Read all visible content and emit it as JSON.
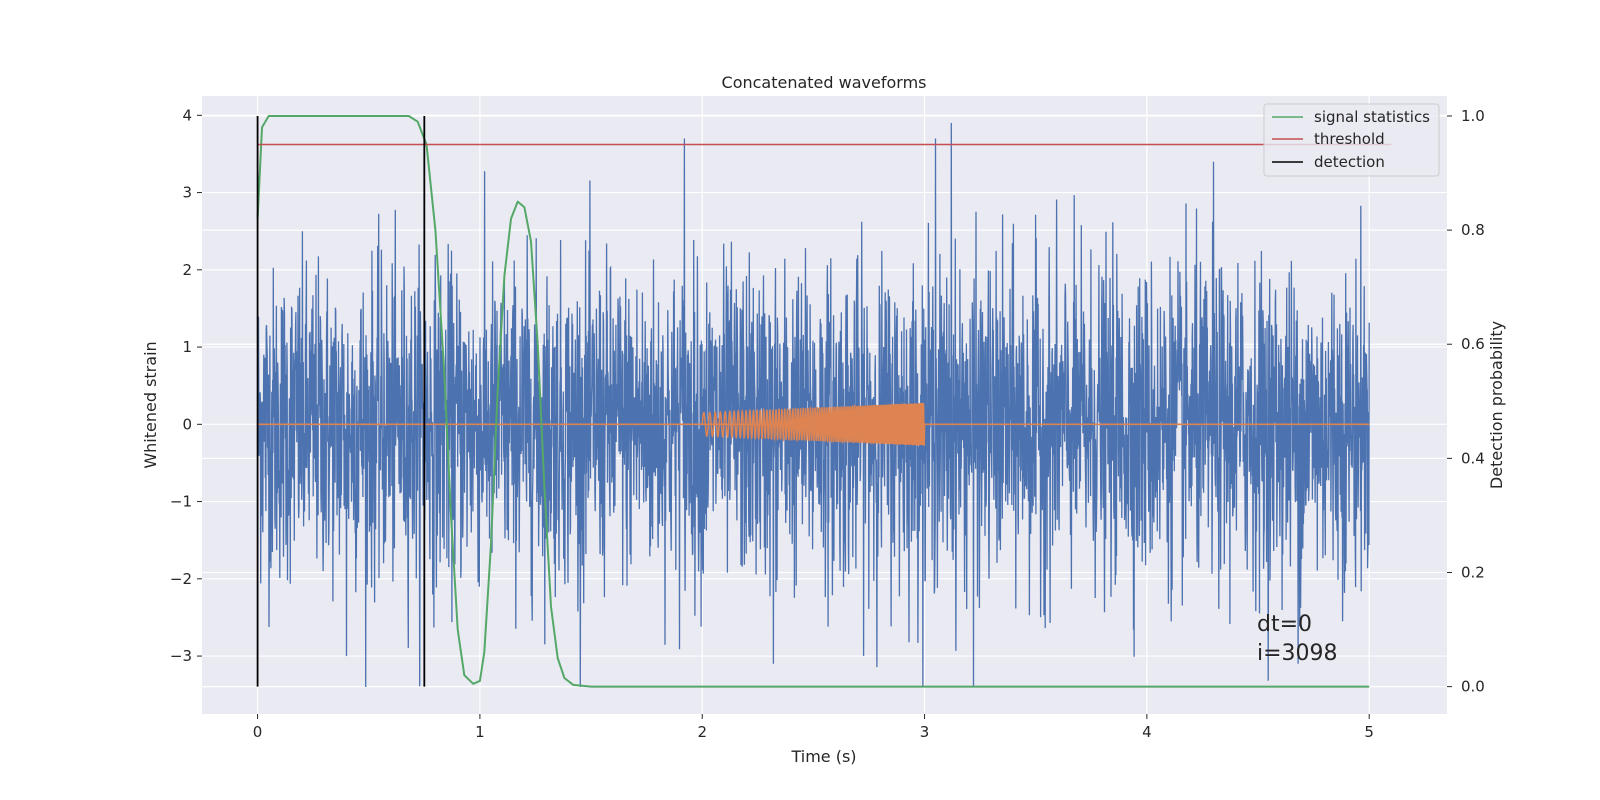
{
  "chart_data": {
    "type": "line",
    "title": "Concatenated waveforms",
    "xlabel": "Time (s)",
    "ylabel": "Whitened strain",
    "y2label": "Detection probability",
    "xlim": [
      -0.25,
      5.35
    ],
    "ylim": [
      -3.75,
      4.25
    ],
    "y2lim": [
      -0.048,
      1.035
    ],
    "xticks": [
      0,
      1,
      2,
      3,
      4,
      5
    ],
    "yticks": [
      -3,
      -2,
      -1,
      0,
      1,
      2,
      3,
      4
    ],
    "y2ticks": [
      0.0,
      0.2,
      0.4,
      0.6,
      0.8,
      1.0
    ],
    "xtick_labels": [
      "0",
      "1",
      "2",
      "3",
      "4",
      "5"
    ],
    "ytick_labels": [
      "−3",
      "−2",
      "−1",
      "0",
      "1",
      "2",
      "3",
      "4"
    ],
    "y2tick_labels": [
      "0.0",
      "0.2",
      "0.4",
      "0.6",
      "0.8",
      "1.0"
    ],
    "grid": true,
    "legend_position": "top-right",
    "colors": {
      "strain": "#4c72b0",
      "template": "#dd8452",
      "signal": "#55a868",
      "threshold": "#c44e52",
      "detection": "#000000",
      "background": "#eaeaf2"
    },
    "series": [
      {
        "name": "signal statistics",
        "axis": "right",
        "x": [
          0.0,
          0.02,
          0.05,
          0.1,
          0.2,
          0.4,
          0.6,
          0.68,
          0.72,
          0.76,
          0.8,
          0.84,
          0.87,
          0.9,
          0.93,
          0.97,
          1.0,
          1.02,
          1.05,
          1.08,
          1.11,
          1.14,
          1.17,
          1.2,
          1.23,
          1.26,
          1.29,
          1.32,
          1.35,
          1.38,
          1.42,
          1.5,
          2.0,
          3.0,
          4.0,
          5.0
        ],
        "values": [
          0.82,
          0.98,
          1.0,
          1.0,
          1.0,
          1.0,
          1.0,
          1.0,
          0.99,
          0.95,
          0.8,
          0.55,
          0.3,
          0.1,
          0.02,
          0.005,
          0.01,
          0.06,
          0.25,
          0.52,
          0.72,
          0.82,
          0.85,
          0.84,
          0.78,
          0.6,
          0.35,
          0.14,
          0.05,
          0.015,
          0.003,
          0.0,
          0.0,
          0.0,
          0.0,
          0.0
        ]
      },
      {
        "name": "threshold",
        "axis": "right",
        "x": [
          0.0,
          5.1
        ],
        "values": [
          0.95,
          0.95
        ]
      },
      {
        "name": "detection",
        "axis": "right",
        "x": [
          0.0,
          0.75
        ],
        "values": [
          0.0,
          1.0
        ]
      }
    ],
    "noise": {
      "x_range": [
        0,
        5
      ],
      "typical_amplitude": 1.0,
      "max": 3.9,
      "min": -3.4,
      "spikes": [
        [
          0.4,
          -3.0
        ],
        [
          1.92,
          3.7
        ],
        [
          2.32,
          -3.1
        ],
        [
          3.05,
          3.7
        ],
        [
          3.12,
          3.9
        ],
        [
          3.22,
          -3.4
        ],
        [
          4.3,
          3.4
        ],
        [
          4.3,
          -3.2
        ],
        [
          4.68,
          -3.1
        ]
      ]
    },
    "injected_waveform": {
      "x_range": [
        2.0,
        3.0
      ],
      "amplitude_start": 0.15,
      "amplitude_end": 0.28
    },
    "annotations": [
      "dt=0",
      "i=3098"
    ]
  }
}
